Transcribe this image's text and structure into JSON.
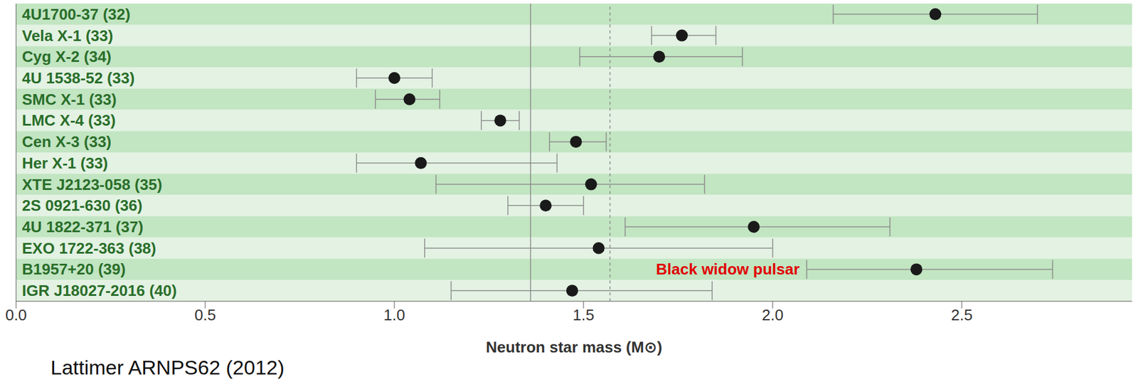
{
  "chart_data": {
    "type": "scatter",
    "marker": "circle",
    "color": "#1a1a1a",
    "grid": false,
    "xlabel": "Neutron star mass (M⊙)",
    "source": "Lattimer ARNPS62 (2012)",
    "categories": [
      "4U1700-37 (32)",
      "Vela X-1 (33)",
      "Cyg X-2 (34)",
      "4U 1538-52 (33)",
      "SMC X-1 (33)",
      "LMC X-4 (33)",
      "Cen X-3 (33)",
      "Her X-1 (33)",
      "XTE J2123-058 (35)",
      "2S 0921-630 (36)",
      "4U 1822-371 (37)",
      "EXO 1722-363 (38)",
      "B1957+20 (39)",
      "IGR J18027-2016 (40)"
    ],
    "values": [
      2.43,
      1.76,
      1.7,
      1.0,
      1.04,
      1.28,
      1.48,
      1.07,
      1.52,
      1.4,
      1.95,
      1.54,
      2.38,
      1.47
    ],
    "lower": [
      2.16,
      1.68,
      1.49,
      0.9,
      0.95,
      1.23,
      1.41,
      0.9,
      1.11,
      1.3,
      1.61,
      1.08,
      2.09,
      1.15
    ],
    "upper": [
      2.7,
      1.85,
      1.92,
      1.1,
      1.12,
      1.33,
      1.56,
      1.43,
      1.82,
      1.5,
      2.31,
      2.0,
      2.74,
      1.84
    ],
    "xlim": [
      0,
      2.95
    ],
    "xticks": [
      {
        "value": 0,
        "label": "0.0"
      },
      0.5,
      {
        "value": 1,
        "label": "1.0"
      },
      1.5,
      {
        "value": 2,
        "label": "2.0"
      },
      2.5
    ],
    "reference_lines": [
      {
        "value": 1.36,
        "line_style": "solid"
      },
      {
        "value": 1.57,
        "line_style": "dashed"
      }
    ],
    "annotations": [
      {
        "text": "Black widow pulsar",
        "category": "B1957+20 (39)",
        "color": "#e00000"
      }
    ]
  }
}
